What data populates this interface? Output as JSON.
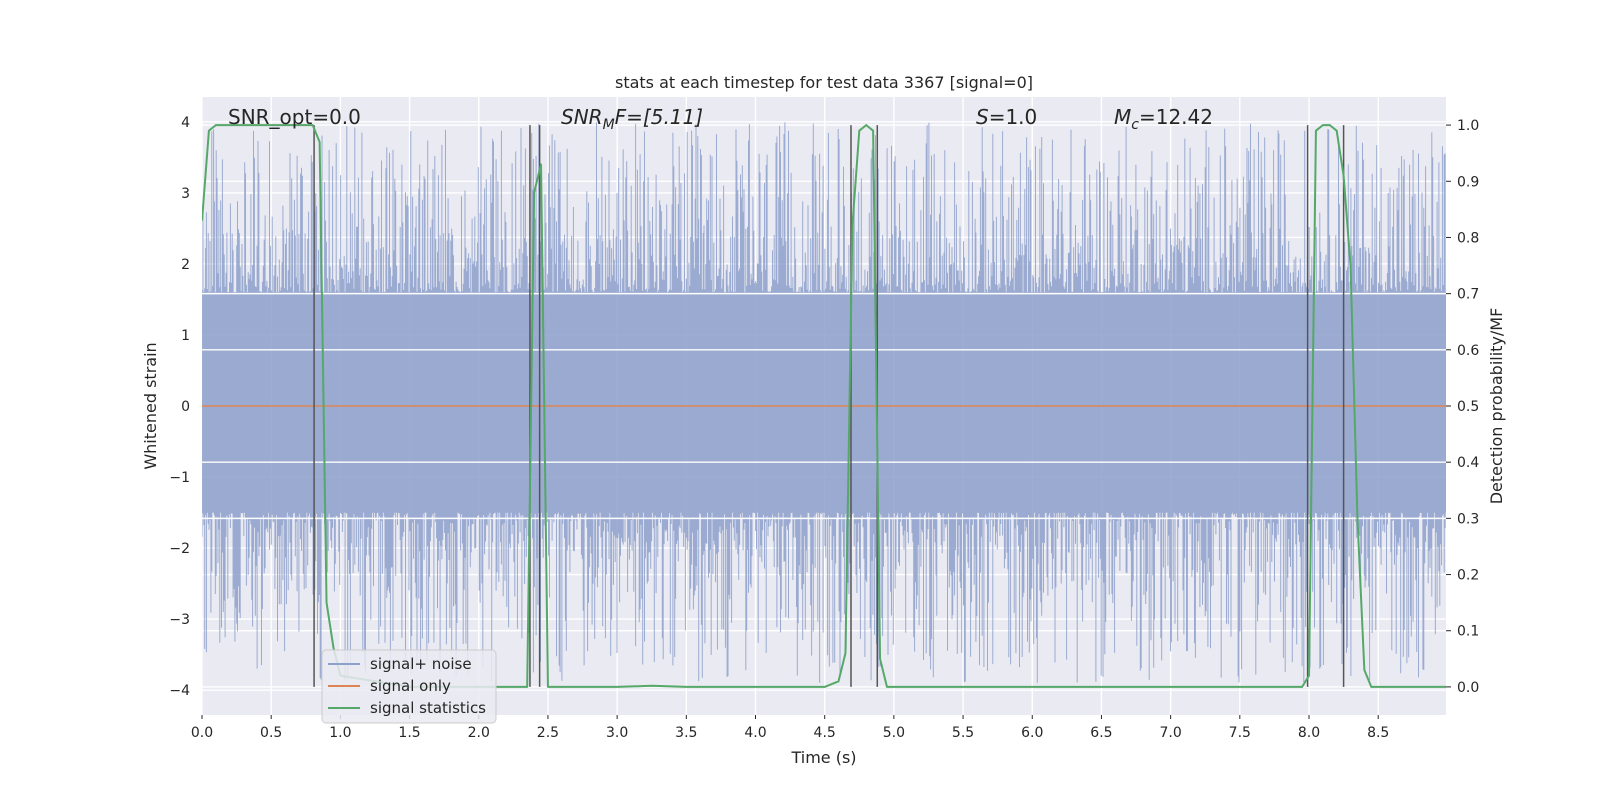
{
  "chart_data": {
    "type": "line",
    "title": "stats at each timestep for test data 3367 [signal=0]",
    "xlabel": "Time (s)",
    "ylabel_left": "Whitened strain",
    "ylabel_right": "Detection probability/MF",
    "xlim": [
      0.0,
      8.99
    ],
    "ylim_left": [
      -4.35,
      4.35
    ],
    "ylim_right": [
      -0.05,
      1.05
    ],
    "x_ticks": [
      0.0,
      0.5,
      1.0,
      1.5,
      2.0,
      2.5,
      3.0,
      3.5,
      4.0,
      4.5,
      5.0,
      5.5,
      6.0,
      6.5,
      7.0,
      7.5,
      8.0,
      8.5
    ],
    "x_tick_labels": [
      "0.0",
      "0.5",
      "1.0",
      "1.5",
      "2.0",
      "2.5",
      "3.0",
      "3.5",
      "4.0",
      "4.5",
      "5.0",
      "5.5",
      "6.0",
      "6.5",
      "7.0",
      "7.5",
      "8.0",
      "8.5"
    ],
    "y_left_ticks": [
      -4,
      -3,
      -2,
      -1,
      0,
      1,
      2,
      3,
      4
    ],
    "y_left_tick_labels": [
      "−4",
      "−3",
      "−2",
      "−1",
      "0",
      "1",
      "2",
      "3",
      "4"
    ],
    "y_right_ticks": [
      0.0,
      0.1,
      0.2,
      0.3,
      0.4,
      0.5,
      0.6,
      0.7,
      0.8,
      0.9,
      1.0
    ],
    "y_right_tick_labels": [
      "0.0",
      "0.1",
      "0.2",
      "0.3",
      "0.4",
      "0.5",
      "0.6",
      "0.7",
      "0.8",
      "0.9",
      "1.0"
    ],
    "annotations": {
      "snr_opt": "SNR_opt=0.0",
      "snr_mf_sym": "SNR",
      "snr_mf_sub": "M",
      "snr_mf_rest": "F=[5.11]",
      "s_sym": "S",
      "s_rest": "=1.0",
      "mc_sym": "M",
      "mc_sub": "c",
      "mc_rest": "=12.42"
    },
    "legend": {
      "position": "lower-left",
      "entries": [
        {
          "label": "signal+ noise",
          "color": "#8da0cb"
        },
        {
          "label": "signal only",
          "color": "#dd8452"
        },
        {
          "label": "signal statistics",
          "color": "#55a868"
        }
      ]
    },
    "series": [
      {
        "name": "signal+ noise",
        "axis": "left",
        "kind": "noise-band",
        "color": "#8da0cb",
        "core_upper": 1.6,
        "core_lower": -1.5,
        "peak_upper": 4.0,
        "peak_lower": -3.9,
        "x_range": [
          0.0,
          8.99
        ]
      },
      {
        "name": "signal only",
        "axis": "left",
        "color": "#dd8452",
        "x": [
          0.0,
          8.99
        ],
        "y": [
          0.0,
          0.0
        ]
      },
      {
        "name": "signal statistics",
        "axis": "right",
        "color": "#55a868",
        "x": [
          0.0,
          0.05,
          0.1,
          0.2,
          0.3,
          0.4,
          0.5,
          0.6,
          0.7,
          0.8,
          0.85,
          0.9,
          0.95,
          1.0,
          1.5,
          2.0,
          2.3,
          2.35,
          2.4,
          2.45,
          2.5,
          2.55,
          3.0,
          3.25,
          3.5,
          4.0,
          4.5,
          4.6,
          4.65,
          4.7,
          4.75,
          4.8,
          4.85,
          4.9,
          4.95,
          5.0,
          5.5,
          6.0,
          6.5,
          7.0,
          7.5,
          7.95,
          8.0,
          8.05,
          8.1,
          8.15,
          8.2,
          8.25,
          8.3,
          8.35,
          8.4,
          8.45,
          8.5,
          9.0
        ],
        "y": [
          0.83,
          0.99,
          1.0,
          1.0,
          1.0,
          1.0,
          1.0,
          1.0,
          1.0,
          1.0,
          0.97,
          0.15,
          0.07,
          0.02,
          0.0,
          0.0,
          0.0,
          0.0,
          0.88,
          0.93,
          0.0,
          0.0,
          0.0,
          0.002,
          0.0,
          0.0,
          0.0,
          0.01,
          0.06,
          0.82,
          0.99,
          1.0,
          0.99,
          0.05,
          0.0,
          0.0,
          0.0,
          0.0,
          0.0,
          0.0,
          0.0,
          0.0,
          0.02,
          0.99,
          1.0,
          1.0,
          0.99,
          0.91,
          0.75,
          0.3,
          0.03,
          0.0,
          0.0,
          0.0
        ]
      }
    ],
    "vertical_markers": [
      0.81,
      2.37,
      2.44,
      4.69,
      4.88,
      7.99,
      8.25
    ]
  }
}
